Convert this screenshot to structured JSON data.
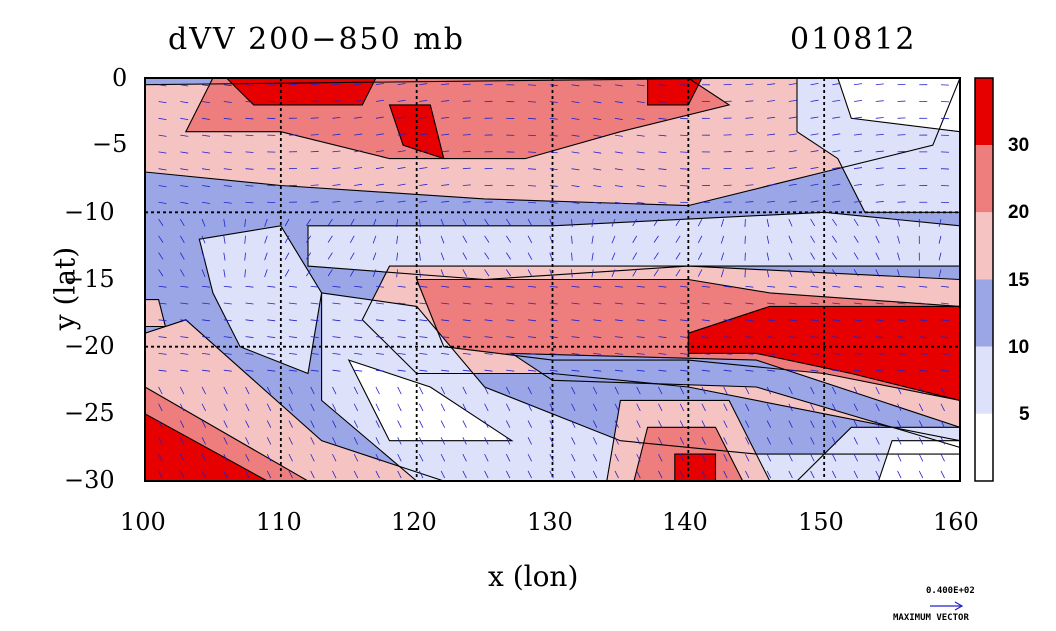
{
  "title": "dVV 200−850 mb",
  "date_label": "010812",
  "xlabel": "x (lon)",
  "ylabel": "y (lat)",
  "x_ticks": [
    "100",
    "110",
    "120",
    "130",
    "140",
    "150",
    "160"
  ],
  "y_ticks": [
    "0",
    "−5",
    "−10",
    "−15",
    "−20",
    "−25",
    "−30"
  ],
  "colorbar": {
    "labels": [
      "30",
      "20",
      "15",
      "10",
      "5"
    ],
    "levels": [
      0,
      5,
      10,
      15,
      20,
      30,
      40
    ],
    "colors": [
      "#ffffff",
      "#dde2fa",
      "#9aa6e6",
      "#f6c3c3",
      "#ee7d7d",
      "#e60000"
    ]
  },
  "max_vector_label": "0.400E+02",
  "max_vector_caption": "MAXIMUM VECTOR",
  "vector_color": "#2222cc",
  "map": {
    "lon_range": [
      100,
      160
    ],
    "lat_range": [
      -30,
      0
    ],
    "gridlines_lon": [
      110,
      120,
      130,
      140,
      150
    ],
    "gridlines_lat": [
      -10,
      -20
    ]
  }
}
